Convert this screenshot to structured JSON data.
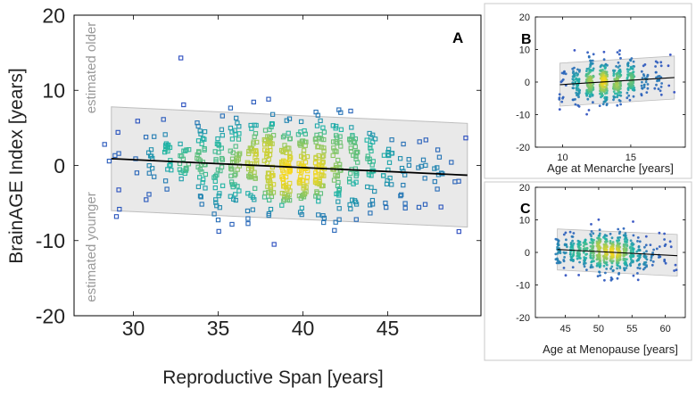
{
  "chart_data": [
    {
      "type": "scatter",
      "panel": "A",
      "xlabel": "Reproductive Span [years]",
      "ylabel": "BrainAGE Index [years]",
      "xlim": [
        26.5,
        50.5
      ],
      "ylim": [
        -20,
        20
      ],
      "xticks": [
        30,
        35,
        40,
        45
      ],
      "yticks": [
        -20,
        -10,
        0,
        10,
        20
      ],
      "annotations": {
        "upper": "estimated older",
        "lower": "estimated younger"
      },
      "regression": {
        "x": [
          28.7,
          49.7
        ],
        "y": [
          0.9,
          -1.3
        ]
      },
      "band_upper": {
        "x": [
          28.7,
          49.7
        ],
        "y": [
          7.8,
          5.6
        ]
      },
      "band_lower": {
        "x": [
          28.7,
          49.7
        ],
        "y": [
          -6.0,
          -8.2
        ]
      },
      "marker": "open-square",
      "n_points": 620,
      "x_range": [
        28.3,
        49.5
      ],
      "x_mean": 39.0,
      "x_sd": 4.0,
      "residual_sd": 3.3,
      "notable_points": [
        {
          "x": 32.8,
          "y": 14.3
        },
        {
          "x": 28.3,
          "y": 2.8
        },
        {
          "x": 49.2,
          "y": -8.8
        },
        {
          "x": 29.0,
          "y": -6.8
        },
        {
          "x": 38.3,
          "y": -10.5
        }
      ]
    },
    {
      "type": "scatter",
      "panel": "B",
      "xlabel": "Age at Menarche [years]",
      "ylabel": "",
      "xlim": [
        8,
        19
      ],
      "ylim": [
        -20,
        20
      ],
      "xticks": [
        10,
        15
      ],
      "yticks": [
        -20,
        -10,
        0,
        10,
        20
      ],
      "regression": {
        "x": [
          9.8,
          18.2
        ],
        "y": [
          -0.8,
          1.4
        ]
      },
      "band_upper": {
        "x": [
          9.8,
          18.2
        ],
        "y": [
          5.8,
          8.0
        ]
      },
      "band_lower": {
        "x": [
          9.8,
          18.2
        ],
        "y": [
          -7.4,
          -5.2
        ]
      },
      "marker": "dot",
      "n_points": 600,
      "x_values": [
        10,
        11,
        12,
        13,
        14,
        15,
        16,
        17,
        18
      ],
      "x_weights": [
        0.03,
        0.1,
        0.2,
        0.26,
        0.2,
        0.12,
        0.05,
        0.03,
        0.01
      ],
      "residual_sd": 3.3
    },
    {
      "type": "scatter",
      "panel": "C",
      "xlabel": "Age at Menopause [years]",
      "ylabel": "",
      "xlim": [
        40.5,
        63
      ],
      "ylim": [
        -20,
        20
      ],
      "xticks": [
        45,
        50,
        55,
        60
      ],
      "yticks": [
        -20,
        -10,
        0,
        10,
        20
      ],
      "regression": {
        "x": [
          43.8,
          61.8
        ],
        "y": [
          0.9,
          -1.0
        ]
      },
      "band_upper": {
        "x": [
          43.8,
          61.8
        ],
        "y": [
          7.2,
          5.5
        ]
      },
      "band_lower": {
        "x": [
          43.8,
          61.8
        ],
        "y": [
          -5.4,
          -7.3
        ]
      },
      "marker": "dot",
      "n_points": 650,
      "x_range": [
        43.8,
        61.5
      ],
      "x_mean": 51.0,
      "x_sd": 3.8,
      "residual_sd": 3.0
    }
  ],
  "colors": {
    "regression_line": "#000000",
    "band_fill": "#e9e9e9",
    "band_stroke": "#bdbdbd",
    "density_low": "#2c3fc2",
    "density_mid": "#1fb5a6",
    "density_high": "#f9d81c",
    "frame": "#000000"
  }
}
